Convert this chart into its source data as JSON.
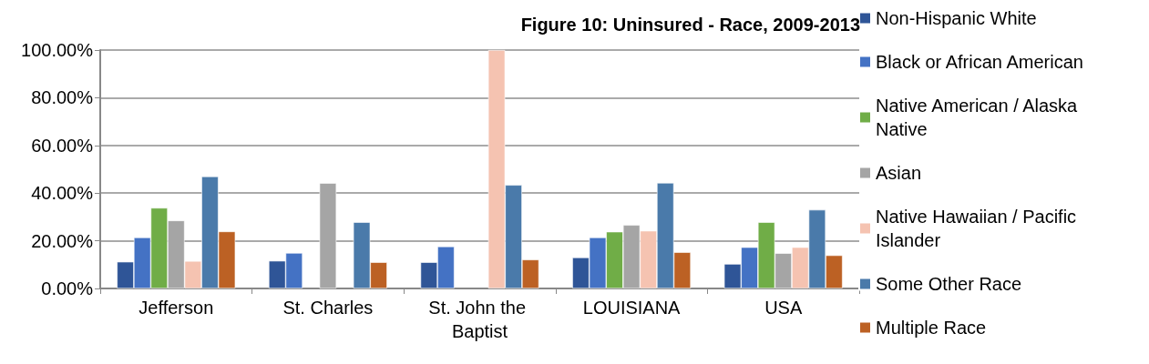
{
  "chart_data": {
    "type": "bar",
    "title": "Figure 10: Uninsured - Race, 2009-2013",
    "categories": [
      "Jefferson",
      "St. Charles",
      "St. John the Baptist",
      "LOUISIANA",
      "USA"
    ],
    "series": [
      {
        "name": "Non-Hispanic White",
        "color": "#2f5597",
        "values": [
          11.2,
          11.6,
          11.0,
          13.0,
          10.3
        ]
      },
      {
        "name": "Black or African American",
        "color": "#4472c4",
        "values": [
          21.4,
          14.9,
          17.6,
          21.4,
          17.3
        ]
      },
      {
        "name": "Native American / Alaska Native",
        "color": "#70ad47",
        "values": [
          33.8,
          null,
          null,
          23.8,
          27.8
        ]
      },
      {
        "name": "Asian",
        "color": "#a5a5a5",
        "values": [
          28.5,
          44.2,
          null,
          26.6,
          14.8
        ]
      },
      {
        "name": "Native Hawaiian / Pacific Islander",
        "color": "#f5c3b1",
        "values": [
          11.5,
          null,
          100,
          24.2,
          17.3
        ]
      },
      {
        "name": "Some Other Race",
        "color": "#4a7aaa",
        "values": [
          47.0,
          27.8,
          43.4,
          44.3,
          33.0
        ]
      },
      {
        "name": "Multiple Race",
        "color": "#bc6124",
        "values": [
          23.9,
          11.0,
          12.1,
          15.2,
          13.9
        ]
      }
    ],
    "ylim": [
      0,
      100
    ],
    "yticks": [
      {
        "value": 0,
        "label": "0.00%"
      },
      {
        "value": 20,
        "label": "20.00%"
      },
      {
        "value": 40,
        "label": "40.00%"
      },
      {
        "value": 60,
        "label": "60.00%"
      },
      {
        "value": 80,
        "label": "80.00%"
      },
      {
        "value": 100,
        "label": "100.00%"
      }
    ],
    "grid": "y",
    "legend": "right"
  }
}
